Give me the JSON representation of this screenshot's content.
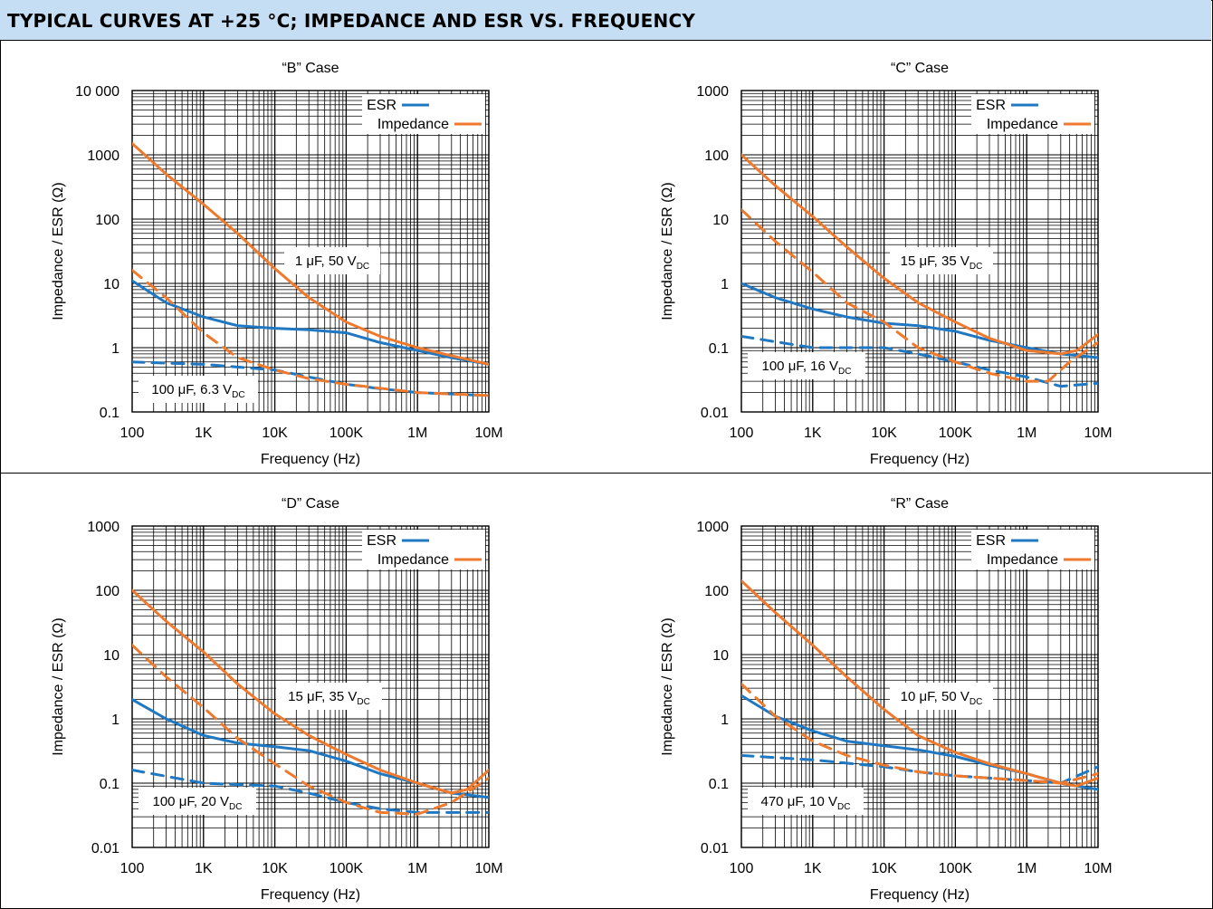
{
  "header": {
    "title": "TYPICAL CURVES AT +25 °C; IMPEDANCE AND ESR VS. FREQUENCY"
  },
  "colors": {
    "esr": "#1f78c1",
    "impedance": "#ef7a2e",
    "header_bg": "#c6def3"
  },
  "chart_data": [
    {
      "type": "line",
      "title": "“B” Case",
      "xlabel": "Frequency (Hz)",
      "ylabel": "Impedance / ESR (Ω)",
      "xscale": "log",
      "yscale": "log",
      "xlim": [
        100,
        10000000
      ],
      "ylim": [
        0.1,
        10000
      ],
      "xticks": [
        100,
        1000,
        10000,
        100000,
        1000000,
        10000000
      ],
      "xtick_labels": [
        "100",
        "1K",
        "10K",
        "100K",
        "1M",
        "10M"
      ],
      "yticks": [
        0.1,
        1,
        10,
        100,
        1000,
        10000
      ],
      "ytick_labels": [
        "0.1",
        "1",
        "10",
        "100",
        "1000",
        "10 000"
      ],
      "grid": true,
      "legend": {
        "placement": "top-right",
        "entries": [
          {
            "label": "ESR",
            "series": "esr"
          },
          {
            "label": "Impedance",
            "series": "impedance"
          }
        ]
      },
      "annotations": [
        {
          "main": "1 μF, 50 V",
          "sub": "DC",
          "applies_to": "solid"
        },
        {
          "main": "100 μF, 6.3 V",
          "sub": "DC",
          "applies_to": "dashed"
        }
      ],
      "series": [
        {
          "kind": "esr",
          "style": "solid",
          "points": [
            [
              100,
              11
            ],
            [
              300,
              5
            ],
            [
              1000,
              3
            ],
            [
              3000,
              2.2
            ],
            [
              10000,
              2
            ],
            [
              30000,
              1.9
            ],
            [
              100000,
              1.7
            ],
            [
              300000,
              1.2
            ],
            [
              1000000,
              0.9
            ],
            [
              3000000,
              0.7
            ],
            [
              10000000,
              0.55
            ]
          ]
        },
        {
          "kind": "impedance",
          "style": "solid",
          "points": [
            [
              100,
              1500
            ],
            [
              300,
              500
            ],
            [
              1000,
              170
            ],
            [
              3000,
              60
            ],
            [
              10000,
              17
            ],
            [
              30000,
              6
            ],
            [
              100000,
              2.5
            ],
            [
              300000,
              1.5
            ],
            [
              1000000,
              1
            ],
            [
              3000000,
              0.75
            ],
            [
              10000000,
              0.55
            ]
          ]
        },
        {
          "kind": "esr",
          "style": "dashed",
          "points": [
            [
              100,
              0.6
            ],
            [
              1000,
              0.55
            ],
            [
              10000,
              0.45
            ],
            [
              30000,
              0.35
            ],
            [
              100000,
              0.27
            ],
            [
              300000,
              0.23
            ],
            [
              1000000,
              0.2
            ],
            [
              10000000,
              0.18
            ]
          ]
        },
        {
          "kind": "impedance",
          "style": "dashed",
          "points": [
            [
              100,
              16
            ],
            [
              300,
              6
            ],
            [
              1000,
              1.7
            ],
            [
              3000,
              0.7
            ],
            [
              10000,
              0.45
            ],
            [
              30000,
              0.33
            ],
            [
              100000,
              0.27
            ],
            [
              1000000,
              0.2
            ],
            [
              10000000,
              0.18
            ]
          ]
        }
      ]
    },
    {
      "type": "line",
      "title": "“C” Case",
      "xlabel": "Frequency (Hz)",
      "ylabel": "Impedance / ESR (Ω)",
      "xscale": "log",
      "yscale": "log",
      "xlim": [
        100,
        10000000
      ],
      "ylim": [
        0.01,
        1000
      ],
      "xticks": [
        100,
        1000,
        10000,
        100000,
        1000000,
        10000000
      ],
      "xtick_labels": [
        "100",
        "1K",
        "10K",
        "100K",
        "1M",
        "10M"
      ],
      "yticks": [
        0.01,
        0.1,
        1,
        10,
        100,
        1000
      ],
      "ytick_labels": [
        "0.01",
        "0.1",
        "1",
        "10",
        "100",
        "1000"
      ],
      "grid": true,
      "legend": {
        "placement": "top-right",
        "entries": [
          {
            "label": "ESR",
            "series": "esr"
          },
          {
            "label": "Impedance",
            "series": "impedance"
          }
        ]
      },
      "annotations": [
        {
          "main": "15 μF, 35 V",
          "sub": "DC",
          "applies_to": "solid"
        },
        {
          "main": "100 μF, 16 V",
          "sub": "DC",
          "applies_to": "dashed"
        }
      ],
      "series": [
        {
          "kind": "esr",
          "style": "solid",
          "points": [
            [
              100,
              1
            ],
            [
              300,
              0.6
            ],
            [
              1000,
              0.4
            ],
            [
              3000,
              0.3
            ],
            [
              10000,
              0.24
            ],
            [
              30000,
              0.22
            ],
            [
              100000,
              0.18
            ],
            [
              300000,
              0.13
            ],
            [
              1000000,
              0.1
            ],
            [
              3000000,
              0.08
            ],
            [
              10000000,
              0.07
            ]
          ]
        },
        {
          "kind": "impedance",
          "style": "solid",
          "points": [
            [
              100,
              100
            ],
            [
              300,
              33
            ],
            [
              1000,
              11
            ],
            [
              3000,
              3.7
            ],
            [
              10000,
              1.2
            ],
            [
              30000,
              0.5
            ],
            [
              100000,
              0.25
            ],
            [
              300000,
              0.14
            ],
            [
              1000000,
              0.09
            ],
            [
              3000000,
              0.08
            ],
            [
              5000000,
              0.09
            ],
            [
              10000000,
              0.16
            ]
          ]
        },
        {
          "kind": "esr",
          "style": "dashed",
          "points": [
            [
              100,
              0.15
            ],
            [
              1000,
              0.1
            ],
            [
              10000,
              0.1
            ],
            [
              30000,
              0.08
            ],
            [
              100000,
              0.06
            ],
            [
              300000,
              0.045
            ],
            [
              1000000,
              0.035
            ],
            [
              3000000,
              0.025
            ],
            [
              10000000,
              0.028
            ]
          ]
        },
        {
          "kind": "impedance",
          "style": "dashed",
          "points": [
            [
              100,
              14
            ],
            [
              300,
              4.5
            ],
            [
              1000,
              1.5
            ],
            [
              3000,
              0.5
            ],
            [
              10000,
              0.25
            ],
            [
              30000,
              0.1
            ],
            [
              100000,
              0.06
            ],
            [
              300000,
              0.04
            ],
            [
              1000000,
              0.03
            ],
            [
              2000000,
              0.03
            ],
            [
              4000000,
              0.06
            ],
            [
              10000000,
              0.12
            ]
          ]
        }
      ]
    },
    {
      "type": "line",
      "title": "“D” Case",
      "xlabel": "Frequency (Hz)",
      "ylabel": "Impedance / ESR (Ω)",
      "xscale": "log",
      "yscale": "log",
      "xlim": [
        100,
        10000000
      ],
      "ylim": [
        0.01,
        1000
      ],
      "xticks": [
        100,
        1000,
        10000,
        100000,
        1000000,
        10000000
      ],
      "xtick_labels": [
        "100",
        "1K",
        "10K",
        "100K",
        "1M",
        "10M"
      ],
      "yticks": [
        0.01,
        0.1,
        1,
        10,
        100,
        1000
      ],
      "ytick_labels": [
        "0.01",
        "0.1",
        "1",
        "10",
        "100",
        "1000"
      ],
      "grid": true,
      "legend": {
        "placement": "top-right",
        "entries": [
          {
            "label": "ESR",
            "series": "esr"
          },
          {
            "label": "Impedance",
            "series": "impedance"
          }
        ]
      },
      "annotations": [
        {
          "main": "15 μF, 35 V",
          "sub": "DC",
          "applies_to": "solid"
        },
        {
          "main": "100 μF, 20 V",
          "sub": "DC",
          "applies_to": "dashed"
        }
      ],
      "series": [
        {
          "kind": "esr",
          "style": "solid",
          "points": [
            [
              100,
              2
            ],
            [
              300,
              1
            ],
            [
              1000,
              0.55
            ],
            [
              3000,
              0.42
            ],
            [
              10000,
              0.37
            ],
            [
              30000,
              0.32
            ],
            [
              100000,
              0.22
            ],
            [
              300000,
              0.14
            ],
            [
              1000000,
              0.1
            ],
            [
              3000000,
              0.07
            ],
            [
              10000000,
              0.06
            ]
          ]
        },
        {
          "kind": "impedance",
          "style": "solid",
          "points": [
            [
              100,
              100
            ],
            [
              300,
              33
            ],
            [
              1000,
              11
            ],
            [
              3000,
              3.5
            ],
            [
              10000,
              1.2
            ],
            [
              30000,
              0.55
            ],
            [
              100000,
              0.28
            ],
            [
              300000,
              0.16
            ],
            [
              1000000,
              0.1
            ],
            [
              3000000,
              0.07
            ],
            [
              5000000,
              0.08
            ],
            [
              10000000,
              0.16
            ]
          ]
        },
        {
          "kind": "esr",
          "style": "dashed",
          "points": [
            [
              100,
              0.16
            ],
            [
              1000,
              0.1
            ],
            [
              10000,
              0.09
            ],
            [
              30000,
              0.07
            ],
            [
              100000,
              0.05
            ],
            [
              300000,
              0.04
            ],
            [
              1000000,
              0.035
            ],
            [
              10000000,
              0.035
            ]
          ]
        },
        {
          "kind": "impedance",
          "style": "dashed",
          "points": [
            [
              100,
              14
            ],
            [
              300,
              4.5
            ],
            [
              1000,
              1.5
            ],
            [
              3000,
              0.5
            ],
            [
              10000,
              0.2
            ],
            [
              30000,
              0.09
            ],
            [
              100000,
              0.05
            ],
            [
              300000,
              0.035
            ],
            [
              1000000,
              0.033
            ],
            [
              3000000,
              0.05
            ],
            [
              10000000,
              0.12
            ]
          ]
        }
      ]
    },
    {
      "type": "line",
      "title": "“R” Case",
      "xlabel": "Frequency (Hz)",
      "ylabel": "Impedance / ESR (Ω)",
      "xscale": "log",
      "yscale": "log",
      "xlim": [
        100,
        10000000
      ],
      "ylim": [
        0.01,
        1000
      ],
      "xticks": [
        100,
        1000,
        10000,
        100000,
        1000000,
        10000000
      ],
      "xtick_labels": [
        "100",
        "1K",
        "10K",
        "100K",
        "1M",
        "10M"
      ],
      "yticks": [
        0.01,
        0.1,
        1,
        10,
        100,
        1000
      ],
      "ytick_labels": [
        "0.01",
        "0.1",
        "1",
        "10",
        "100",
        "1000"
      ],
      "grid": true,
      "legend": {
        "placement": "top-right",
        "entries": [
          {
            "label": "ESR",
            "series": "esr"
          },
          {
            "label": "Impedance",
            "series": "impedance"
          }
        ]
      },
      "annotations": [
        {
          "main": "10 μF, 50 V",
          "sub": "DC",
          "applies_to": "solid"
        },
        {
          "main": "470 μF, 10 V",
          "sub": "DC",
          "applies_to": "dashed"
        }
      ],
      "series": [
        {
          "kind": "esr",
          "style": "solid",
          "points": [
            [
              100,
              2.3
            ],
            [
              300,
              1.1
            ],
            [
              1000,
              0.65
            ],
            [
              3000,
              0.45
            ],
            [
              10000,
              0.38
            ],
            [
              30000,
              0.33
            ],
            [
              100000,
              0.26
            ],
            [
              300000,
              0.19
            ],
            [
              1000000,
              0.14
            ],
            [
              3000000,
              0.1
            ],
            [
              5000000,
              0.09
            ],
            [
              10000000,
              0.08
            ]
          ]
        },
        {
          "kind": "impedance",
          "style": "solid",
          "points": [
            [
              100,
              140
            ],
            [
              300,
              45
            ],
            [
              1000,
              14
            ],
            [
              3000,
              4.5
            ],
            [
              10000,
              1.4
            ],
            [
              30000,
              0.55
            ],
            [
              100000,
              0.3
            ],
            [
              300000,
              0.2
            ],
            [
              1000000,
              0.14
            ],
            [
              3000000,
              0.1
            ],
            [
              5000000,
              0.09
            ],
            [
              10000000,
              0.12
            ]
          ]
        },
        {
          "kind": "esr",
          "style": "dashed",
          "points": [
            [
              100,
              0.27
            ],
            [
              1000,
              0.23
            ],
            [
              10000,
              0.18
            ],
            [
              30000,
              0.15
            ],
            [
              100000,
              0.13
            ],
            [
              300000,
              0.12
            ],
            [
              1000000,
              0.11
            ],
            [
              3000000,
              0.1
            ],
            [
              10000000,
              0.18
            ]
          ]
        },
        {
          "kind": "impedance",
          "style": "dashed",
          "points": [
            [
              100,
              3.5
            ],
            [
              300,
              1.1
            ],
            [
              1000,
              0.45
            ],
            [
              3000,
              0.27
            ],
            [
              10000,
              0.19
            ],
            [
              30000,
              0.15
            ],
            [
              100000,
              0.13
            ],
            [
              300000,
              0.12
            ],
            [
              1000000,
              0.11
            ],
            [
              3000000,
              0.1
            ],
            [
              10000000,
              0.14
            ]
          ]
        }
      ]
    }
  ]
}
